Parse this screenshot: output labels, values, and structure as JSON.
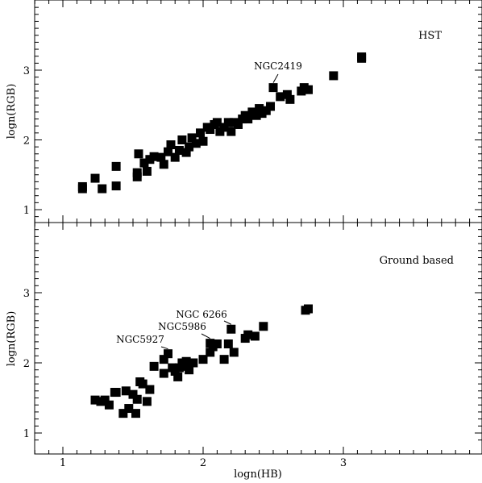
{
  "chart_data": [
    {
      "type": "scatter",
      "panel": "top",
      "annotation_label": "HST",
      "ylabel": "logn(RGB)",
      "xlim": [
        0.8,
        3.95
      ],
      "ylim": [
        0.85,
        3.95
      ],
      "x_ticks": [
        1,
        2,
        3
      ],
      "y_ticks": [
        1,
        2,
        3
      ],
      "x": [
        1.14,
        1.14,
        1.23,
        1.28,
        1.38,
        1.38,
        1.53,
        1.53,
        1.54,
        1.58,
        1.6,
        1.62,
        1.65,
        1.7,
        1.72,
        1.75,
        1.77,
        1.8,
        1.83,
        1.85,
        1.88,
        1.9,
        1.92,
        1.95,
        1.98,
        2.0,
        2.03,
        2.05,
        2.08,
        2.1,
        2.12,
        2.15,
        2.18,
        2.2,
        2.22,
        2.25,
        2.28,
        2.3,
        2.32,
        2.35,
        2.38,
        2.4,
        2.42,
        2.45,
        2.48,
        2.5,
        2.55,
        2.6,
        2.62,
        2.7,
        2.72,
        2.75,
        2.93,
        3.13,
        3.13
      ],
      "y": [
        1.3,
        1.33,
        1.45,
        1.3,
        1.34,
        1.62,
        1.47,
        1.53,
        1.8,
        1.67,
        1.55,
        1.72,
        1.76,
        1.75,
        1.65,
        1.83,
        1.93,
        1.75,
        1.85,
        2.0,
        1.82,
        1.9,
        2.03,
        1.95,
        2.1,
        1.98,
        2.18,
        2.15,
        2.22,
        2.25,
        2.12,
        2.18,
        2.25,
        2.12,
        2.25,
        2.22,
        2.3,
        2.35,
        2.3,
        2.4,
        2.35,
        2.45,
        2.38,
        2.42,
        2.48,
        2.75,
        2.62,
        2.65,
        2.58,
        2.7,
        2.75,
        2.72,
        2.92,
        3.17,
        3.19
      ],
      "annotations": [
        {
          "text": "NGC2419",
          "x": 2.5,
          "y": 2.75
        }
      ]
    },
    {
      "type": "scatter",
      "panel": "bottom",
      "annotation_label": "Ground based",
      "xlabel": "logn(HB)",
      "ylabel": "logn(RGB)",
      "xlim": [
        0.8,
        3.95
      ],
      "ylim": [
        0.85,
        3.95
      ],
      "x_ticks": [
        1,
        2,
        3
      ],
      "y_ticks": [
        1,
        2,
        3
      ],
      "x": [
        1.23,
        1.27,
        1.3,
        1.33,
        1.37,
        1.38,
        1.43,
        1.45,
        1.47,
        1.5,
        1.52,
        1.53,
        1.55,
        1.57,
        1.6,
        1.62,
        1.65,
        1.72,
        1.72,
        1.75,
        1.78,
        1.8,
        1.82,
        1.83,
        1.85,
        1.87,
        1.88,
        1.9,
        1.93,
        2.0,
        2.05,
        2.05,
        2.07,
        2.1,
        2.15,
        2.18,
        2.2,
        2.22,
        2.3,
        2.32,
        2.37,
        2.43,
        2.73,
        2.75
      ],
      "y": [
        1.47,
        1.45,
        1.47,
        1.4,
        1.58,
        1.58,
        1.28,
        1.6,
        1.35,
        1.55,
        1.28,
        1.48,
        1.73,
        1.7,
        1.45,
        1.62,
        1.95,
        1.85,
        2.05,
        2.13,
        1.93,
        1.88,
        1.8,
        1.93,
        2.0,
        1.95,
        2.02,
        1.9,
        2.0,
        2.05,
        2.15,
        2.28,
        2.23,
        2.27,
        2.05,
        2.27,
        2.48,
        2.15,
        2.35,
        2.4,
        2.38,
        2.52,
        2.75,
        2.77
      ],
      "annotations": [
        {
          "text": "NGC5927",
          "x": 1.75,
          "y": 2.13
        },
        {
          "text": "NGC5986",
          "x": 2.05,
          "y": 2.28
        },
        {
          "text": "NGC 6266",
          "x": 2.2,
          "y": 2.48
        }
      ]
    }
  ]
}
